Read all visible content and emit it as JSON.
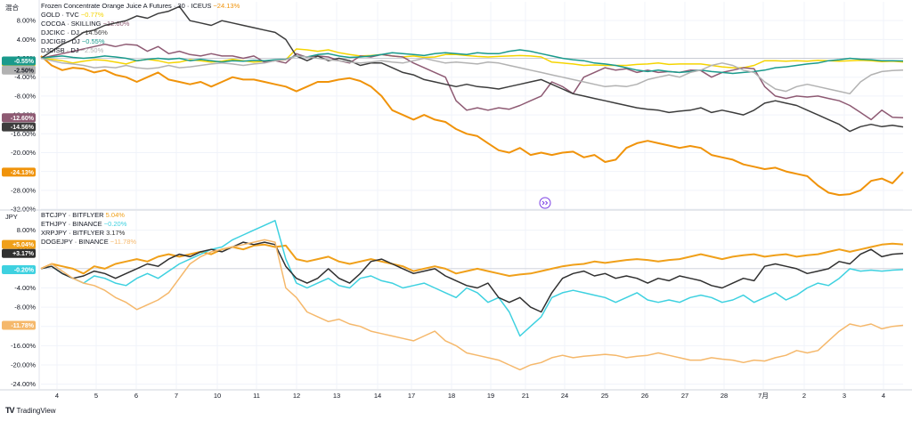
{
  "brand": {
    "logo": "TV",
    "name": "TradingView"
  },
  "chart_data": [
    {
      "type": "line",
      "axis_unit_label": "混合",
      "ylim": [
        -32,
        12
      ],
      "y_ticks": [
        "8.00%",
        "4.00%",
        "0.00%",
        "-4.00%",
        "-8.00%",
        "-12.00%",
        "-16.00%",
        "-20.00%",
        "-24.00%",
        "-28.00%",
        "-32.00%"
      ],
      "y_tick_values": [
        8,
        4,
        0,
        -4,
        -8,
        -12,
        -16,
        -20,
        -24,
        -28,
        -32
      ],
      "series": [
        {
          "name": "Frozen Concentrate Orange Juice A Futures · 30 · ICEUS",
          "change": "−24.13%",
          "badge": "-24.13%",
          "last": -24.13,
          "color": "#f0930a",
          "values": [
            0.5,
            -1.5,
            -2.5,
            -2,
            -2.2,
            -3,
            -2.5,
            -3.5,
            -4,
            -5,
            -4,
            -3,
            -4.5,
            -5,
            -5.5,
            -5,
            -6,
            -5,
            -4,
            -4.5,
            -4.5,
            -5,
            -5.5,
            -6,
            -7,
            -6,
            -5,
            -5,
            -4.5,
            -4.2,
            -4.8,
            -6,
            -8,
            -11,
            -12,
            -13,
            -12,
            -13,
            -13.5,
            -15,
            -16,
            -16.5,
            -18,
            -19.5,
            -20,
            -19,
            -20.5,
            -20,
            -20.5,
            -20,
            -19.8,
            -21,
            -20.5,
            -22,
            -21.5,
            -19,
            -18,
            -17.5,
            -18,
            -18.5,
            -19,
            -18.6,
            -19,
            -20.5,
            -21,
            -21.5,
            -22.5,
            -23,
            -23.5,
            -23.2,
            -24,
            -24.5,
            -25,
            -27,
            -28.5,
            -29,
            -28.8,
            -28,
            -26,
            -25.5,
            -26.5,
            -24.13
          ]
        },
        {
          "name": "GOLD · TVC",
          "change": "−0.77%",
          "badge": "-0.77%",
          "last": -0.77,
          "color": "#f5d400",
          "values": [
            0,
            -0.2,
            -0.5,
            -1.0,
            -0.6,
            -0.3,
            -0.4,
            -0.8,
            -1.2,
            -0.5,
            -0.2,
            -0.5,
            -1.0,
            -0.8,
            -0.3,
            -0.5,
            -0.8,
            -0.6,
            -0.2,
            -0.5,
            -0.8,
            -0.6,
            -0.5,
            -0.3,
            2.0,
            1.8,
            1.5,
            1.8,
            1.2,
            0.8,
            0.5,
            0.6,
            0.8,
            0.5,
            0.3,
            0.5,
            0.2,
            0.3,
            0.8,
            0.8,
            0.6,
            0.4,
            0.3,
            0.4,
            0.5,
            0.6,
            0.5,
            0.3,
            -0.8,
            -1.0,
            -1.2,
            -1.5,
            -1.4,
            -1.5,
            -1.5,
            -1.5,
            -1.3,
            -1.2,
            -1.0,
            -1.3,
            -1.2,
            -1.2,
            -1.2,
            -1.5,
            -1.8,
            -2.0,
            -2.0,
            -1.5,
            -0.5,
            -0.5,
            -0.6,
            -0.5,
            -0.6,
            -0.4,
            -0.5,
            -0.6,
            -0.5,
            -0.4,
            -0.5,
            -0.7,
            -0.6,
            -0.77
          ]
        },
        {
          "name": "COCOA · SKILLING",
          "change": "−12.60%",
          "badge": "-12.60%",
          "last": -12.6,
          "color": "#8e5a73",
          "values": [
            0,
            0.5,
            1.0,
            1.5,
            2.0,
            2.5,
            3.0,
            2.5,
            3.0,
            2.8,
            1.5,
            2.5,
            1.0,
            1.5,
            0.8,
            0.5,
            1.0,
            0.5,
            0.5,
            0.0,
            0.5,
            -0.8,
            -0.5,
            -1.0,
            1.0,
            0.2,
            0.5,
            0.3,
            -0.5,
            -1.0,
            0.5,
            0.3,
            0.8,
            0.5,
            0.3,
            -1.0,
            -2.0,
            -3.0,
            -4.0,
            -9.0,
            -11.0,
            -10.5,
            -11.0,
            -10.5,
            -10.8,
            -10.0,
            -9.0,
            -8.0,
            -5.0,
            -6.0,
            -7.5,
            -4.0,
            -3.0,
            -2.0,
            -2.5,
            -2.2,
            -3.0,
            -2.5,
            -3.0,
            -2.8,
            -3.0,
            -2.5,
            -2.6,
            -4.0,
            -3.0,
            -2.5,
            -2.0,
            -2.2,
            -6.0,
            -8.0,
            -8.5,
            -8.0,
            -8.2,
            -8.0,
            -8.5,
            -9.0,
            -10.0,
            -11.5,
            -13.0,
            -11.0,
            -12.5,
            -12.6
          ]
        },
        {
          "name": "DJCIKC · DJ",
          "change": "−14.56%",
          "badge": "-14.56%",
          "last": -14.56,
          "color": "#3c3c3c",
          "values": [
            0,
            1.5,
            3.0,
            4.0,
            5.5,
            6.0,
            7.0,
            7.5,
            8.0,
            9.0,
            8.5,
            9.5,
            10.0,
            11.0,
            8.0,
            7.5,
            7.0,
            8.0,
            7.5,
            7.0,
            6.5,
            6.0,
            5.5,
            4.0,
            0.5,
            -0.5,
            0.5,
            -0.5,
            0.0,
            -0.5,
            -1.5,
            -1.0,
            -1.0,
            -2.0,
            -3.0,
            -3.5,
            -4.5,
            -5.0,
            -5.5,
            -6.0,
            -5.5,
            -6.0,
            -6.2,
            -6.5,
            -6.0,
            -5.5,
            -5.0,
            -4.5,
            -5.5,
            -6.5,
            -7.5,
            -8.0,
            -8.5,
            -9.0,
            -9.5,
            -10.0,
            -10.5,
            -10.8,
            -11.0,
            -11.5,
            -11.2,
            -11.0,
            -10.5,
            -11.5,
            -11.0,
            -11.5,
            -12.0,
            -11.0,
            -9.5,
            -9.0,
            -9.5,
            -10.0,
            -11.0,
            -12.0,
            -13.0,
            -14.0,
            -15.5,
            -14.5,
            -14.0,
            -14.5,
            -14.2,
            -14.56
          ]
        },
        {
          "name": "DJCIGR · DJ",
          "change": "−0.55%",
          "badge": "-0.55%",
          "last": -0.55,
          "color": "#1a9a8c",
          "values": [
            0,
            0.3,
            0.5,
            0.2,
            0.0,
            0.2,
            0.5,
            0.3,
            0.0,
            -0.5,
            -0.2,
            0.0,
            -0.2,
            0.0,
            -0.5,
            -0.2,
            -0.5,
            -0.8,
            -0.5,
            -0.6,
            -0.4,
            -0.5,
            -0.3,
            -0.2,
            0.5,
            0.3,
            0.8,
            1.0,
            0.5,
            0.2,
            0.3,
            0.5,
            0.8,
            1.2,
            1.0,
            0.8,
            0.6,
            1.0,
            1.2,
            1.0,
            0.8,
            1.2,
            1.0,
            1.0,
            1.5,
            1.8,
            1.5,
            1.0,
            0.5,
            0.0,
            -0.3,
            -0.5,
            -1.0,
            -1.2,
            -1.5,
            -2.0,
            -2.5,
            -2.8,
            -2.5,
            -2.8,
            -3.0,
            -2.8,
            -2.5,
            -2.8,
            -3.0,
            -3.2,
            -3.0,
            -2.8,
            -2.5,
            -2.0,
            -1.8,
            -1.5,
            -1.2,
            -1.0,
            -0.5,
            -0.3,
            0.0,
            -0.2,
            -0.3,
            -0.5,
            -0.5,
            -0.55
          ]
        },
        {
          "name": "DJCISB · DJ",
          "change": "−2.50%",
          "badge": "-2.50%",
          "last": -2.5,
          "color": "#b2b2b2",
          "values": [
            0,
            -0.5,
            -1.0,
            -1.2,
            -1.5,
            -2.0,
            -1.8,
            -2.0,
            -1.5,
            -2.0,
            -2.2,
            -2.0,
            -1.5,
            -2.0,
            -1.8,
            -1.5,
            -1.2,
            -1.0,
            -1.2,
            -1.5,
            -1.2,
            -1.0,
            -0.5,
            -0.3,
            0.5,
            0.3,
            0.0,
            -0.3,
            -0.5,
            -0.8,
            -1.0,
            -0.8,
            -0.5,
            -0.8,
            -1.0,
            -0.5,
            0.0,
            -0.5,
            -1.0,
            -0.8,
            -1.0,
            -1.2,
            -0.8,
            -1.0,
            -1.5,
            -2.0,
            -2.5,
            -3.0,
            -3.5,
            -4.0,
            -4.5,
            -5.0,
            -5.5,
            -6.0,
            -5.8,
            -6.0,
            -5.5,
            -4.5,
            -4.0,
            -3.5,
            -4.0,
            -3.0,
            -2.5,
            -1.5,
            -1.0,
            -1.5,
            -2.5,
            -3.0,
            -5.0,
            -6.5,
            -7.0,
            -6.0,
            -5.5,
            -6.0,
            -6.5,
            -7.0,
            -7.5,
            -5.0,
            -3.5,
            -2.8,
            -2.6,
            -2.5
          ]
        }
      ]
    },
    {
      "type": "line",
      "axis_unit_label": "JPY",
      "ylim": [
        -25,
        12
      ],
      "y_ticks": [
        "8.00%",
        "4.00%",
        "0.00%",
        "-4.00%",
        "-8.00%",
        "-12.00%",
        "-16.00%",
        "-20.00%",
        "-24.00%"
      ],
      "y_tick_values": [
        8,
        4,
        0,
        -4,
        -8,
        -12,
        -16,
        -20,
        -24
      ],
      "series": [
        {
          "name": "BTCJPY · BITFLYER",
          "change": "5.04%",
          "badge": "+5.04%",
          "last": 5.04,
          "color": "#f0a01a",
          "values": [
            0,
            1.0,
            0.5,
            0.0,
            -1.0,
            0.5,
            0.0,
            1.0,
            1.5,
            2.0,
            1.5,
            2.5,
            3.0,
            2.5,
            3.0,
            3.5,
            3.0,
            4.0,
            4.5,
            4.0,
            4.8,
            5.0,
            4.5,
            4.8,
            2.0,
            1.5,
            2.0,
            2.5,
            1.5,
            1.0,
            1.5,
            2.0,
            1.5,
            1.0,
            0.5,
            -0.5,
            0.0,
            0.5,
            0.0,
            -1.0,
            -0.5,
            0.0,
            -0.5,
            -1.0,
            -1.5,
            -1.2,
            -1.0,
            -0.5,
            0.0,
            0.5,
            0.8,
            1.0,
            1.5,
            1.2,
            1.5,
            1.8,
            2.0,
            1.8,
            1.5,
            1.8,
            2.0,
            2.5,
            3.0,
            2.5,
            2.0,
            2.5,
            2.8,
            3.0,
            2.5,
            2.8,
            3.0,
            2.5,
            2.8,
            3.0,
            3.5,
            4.0,
            3.5,
            4.0,
            4.5,
            5.0,
            5.2,
            5.04
          ]
        },
        {
          "name": "ETHJPY · BINANCE",
          "change": "−0.20%",
          "badge": "-0.20%",
          "last": -0.2,
          "color": "#3ed1e0",
          "values": [
            0,
            0.5,
            -1.0,
            -2.0,
            -3.0,
            -1.5,
            -2.0,
            -3.0,
            -3.5,
            -2.0,
            -1.0,
            -2.0,
            -0.5,
            1.0,
            2.0,
            3.0,
            4.0,
            4.5,
            6.0,
            7.0,
            8.0,
            9.0,
            10.0,
            2.0,
            -3.0,
            -4.0,
            -3.0,
            -2.0,
            -3.5,
            -4.0,
            -2.0,
            -1.5,
            -2.5,
            -3.0,
            -4.0,
            -3.5,
            -3.0,
            -4.0,
            -5.0,
            -6.0,
            -4.0,
            -5.0,
            -7.0,
            -6.0,
            -9.0,
            -14.0,
            -12.0,
            -10.0,
            -6.0,
            -5.0,
            -4.5,
            -5.0,
            -5.5,
            -6.0,
            -7.0,
            -6.0,
            -5.0,
            -6.5,
            -7.0,
            -6.5,
            -7.0,
            -6.0,
            -5.5,
            -6.0,
            -7.0,
            -6.5,
            -5.5,
            -7.0,
            -6.0,
            -5.0,
            -6.5,
            -5.5,
            -4.0,
            -3.0,
            -3.5,
            -2.0,
            0.0,
            -0.5,
            -0.3,
            -0.5,
            -0.3,
            -0.2
          ]
        },
        {
          "name": "XRPJPY · BITFLYER",
          "change": "3.17%",
          "badge": "+3.17%",
          "last": 3.17,
          "color": "#303030",
          "values": [
            0,
            0.5,
            -1.0,
            -2.0,
            -1.5,
            -0.5,
            -1.0,
            -2.0,
            -1.0,
            0.0,
            1.0,
            0.5,
            2.0,
            3.0,
            2.5,
            3.5,
            4.0,
            3.5,
            4.5,
            5.5,
            5.0,
            5.5,
            5.0,
            0.5,
            -2.0,
            -3.0,
            -2.0,
            0.0,
            -2.0,
            -3.0,
            -1.0,
            1.5,
            2.0,
            1.0,
            0.0,
            -1.0,
            -0.5,
            0.0,
            -1.5,
            -2.5,
            -3.5,
            -4.0,
            -3.0,
            -6.0,
            -7.0,
            -6.0,
            -8.0,
            -9.0,
            -5.0,
            -2.0,
            -1.0,
            -0.5,
            -1.5,
            -1.0,
            -2.0,
            -1.5,
            -2.0,
            -3.0,
            -2.0,
            -2.5,
            -1.5,
            -2.0,
            -2.5,
            -3.5,
            -4.0,
            -3.0,
            -2.0,
            -2.5,
            0.5,
            1.0,
            0.5,
            0.0,
            -1.0,
            -0.5,
            0.0,
            1.5,
            1.0,
            3.0,
            4.0,
            2.5,
            3.0,
            3.17
          ]
        },
        {
          "name": "DOGEJPY · BINANCE",
          "change": "−11.78%",
          "badge": "-11.78%",
          "last": -11.78,
          "color": "#f5b86b",
          "values": [
            0,
            1.0,
            -0.5,
            -2.0,
            -3.0,
            -3.5,
            -4.5,
            -6.0,
            -7.0,
            -8.5,
            -7.5,
            -6.5,
            -5.0,
            -2.0,
            1.0,
            2.5,
            3.5,
            4.0,
            4.5,
            5.0,
            5.5,
            6.0,
            5.5,
            -4.0,
            -6.0,
            -9.0,
            -10.0,
            -11.0,
            -10.5,
            -11.5,
            -12.0,
            -13.0,
            -13.5,
            -14.0,
            -14.5,
            -15.0,
            -14.0,
            -13.0,
            -15.0,
            -16.0,
            -17.5,
            -18.0,
            -18.5,
            -19.0,
            -20.0,
            -21.0,
            -20.0,
            -19.5,
            -18.5,
            -18.0,
            -18.5,
            -18.2,
            -18.0,
            -17.8,
            -18.0,
            -18.5,
            -18.2,
            -18.0,
            -17.5,
            -18.0,
            -18.5,
            -19.0,
            -19.0,
            -18.5,
            -18.8,
            -19.0,
            -19.5,
            -19.0,
            -19.2,
            -18.5,
            -18.0,
            -17.0,
            -17.5,
            -17.0,
            -15.0,
            -13.0,
            -11.5,
            -12.0,
            -11.5,
            -12.5,
            -12.0,
            -11.78
          ]
        }
      ]
    }
  ],
  "x_axis": {
    "labels": [
      "4",
      "5",
      "6",
      "7",
      "10",
      "11",
      "12",
      "13",
      "14",
      "17",
      "18",
      "19",
      "21",
      "24",
      "25",
      "26",
      "27",
      "28",
      "7月",
      "2",
      "3",
      "4"
    ]
  },
  "fab": {
    "icon": "scroll-arrows-icon"
  }
}
